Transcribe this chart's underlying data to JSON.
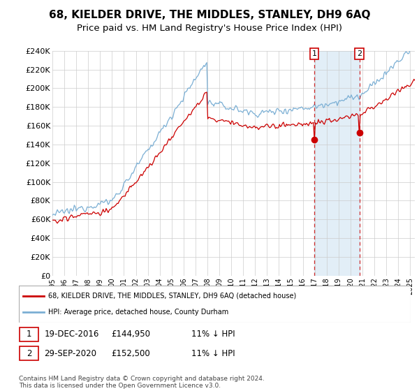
{
  "title": "68, KIELDER DRIVE, THE MIDDLES, STANLEY, DH9 6AQ",
  "subtitle": "Price paid vs. HM Land Registry's House Price Index (HPI)",
  "title_fontsize": 11,
  "subtitle_fontsize": 9.5,
  "ylabel_ticks": [
    "£0",
    "£20K",
    "£40K",
    "£60K",
    "£80K",
    "£100K",
    "£120K",
    "£140K",
    "£160K",
    "£180K",
    "£200K",
    "£220K",
    "£240K"
  ],
  "ylim": [
    0,
    240000
  ],
  "xlim_start": 1995.0,
  "xlim_end": 2025.4,
  "red_line_color": "#cc0000",
  "blue_line_color": "#7bafd4",
  "shade_color": "#d6e8f5",
  "marker1_x": 2016.97,
  "marker1_y": 144950,
  "marker2_x": 2020.75,
  "marker2_y": 152500,
  "legend_line1": "68, KIELDER DRIVE, THE MIDDLES, STANLEY, DH9 6AQ (detached house)",
  "legend_line2": "HPI: Average price, detached house, County Durham",
  "table_row1": [
    "1",
    "19-DEC-2016",
    "£144,950",
    "11% ↓ HPI"
  ],
  "table_row2": [
    "2",
    "29-SEP-2020",
    "£152,500",
    "11% ↓ HPI"
  ],
  "footer": "Contains HM Land Registry data © Crown copyright and database right 2024.\nThis data is licensed under the Open Government Licence v3.0.",
  "background_color": "#ffffff",
  "grid_color": "#cccccc"
}
